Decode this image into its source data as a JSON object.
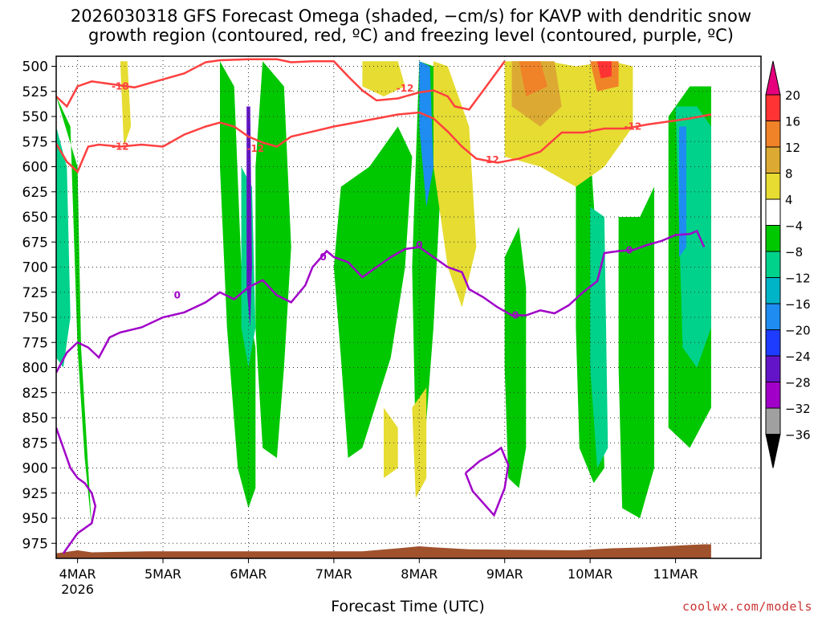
{
  "title_line1": "2026030318 GFS Forecast Omega (shaded, −cm/s) for KAVP with dendritic snow",
  "title_line2": "growth region (contoured, red, ºC) and freezing level (contoured, purple, ºC)",
  "credit": "coolwx.com/models",
  "chart_data": {
    "type": "heatmap",
    "title": "2026030318 GFS Forecast Omega (shaded, −cm/s) for KAVP with dendritic snow growth region (contoured, red, ºC) and freezing level (contoured, purple, ºC)",
    "xlabel": "Forecast Time (UTC)",
    "ylabel": "",
    "x_range_hours": [
      -6,
      192
    ],
    "y_range_hpa": [
      990,
      490
    ],
    "y_ticks": [
      "500",
      "525",
      "550",
      "575",
      "600",
      "625",
      "650",
      "675",
      "700",
      "725",
      "750",
      "775",
      "800",
      "825",
      "850",
      "875",
      "900",
      "925",
      "950",
      "975"
    ],
    "x_ticks": [
      {
        "label": "4MAR",
        "sub": "2026",
        "hour": 0
      },
      {
        "label": "5MAR",
        "sub": "",
        "hour": 24
      },
      {
        "label": "6MAR",
        "sub": "",
        "hour": 48
      },
      {
        "label": "7MAR",
        "sub": "",
        "hour": 72
      },
      {
        "label": "8MAR",
        "sub": "",
        "hour": 96
      },
      {
        "label": "9MAR",
        "sub": "",
        "hour": 120
      },
      {
        "label": "10MAR",
        "sub": "",
        "hour": 144
      },
      {
        "label": "11MAR",
        "sub": "",
        "hour": 168
      }
    ],
    "colorbar_labels": [
      "20",
      "16",
      "12",
      "8",
      "4",
      "−4",
      "−8",
      "−12",
      "−16",
      "−20",
      "−24",
      "−28",
      "−32",
      "−36"
    ],
    "colorbar_colors": [
      "#e6007e",
      "#ff3333",
      "#f08228",
      "#dcaa32",
      "#e6dc32",
      "#ffffff",
      "#00c800",
      "#00d28c",
      "#00b4c8",
      "#1e8cf0",
      "#1e3cff",
      "#6414c8",
      "#a000c8",
      "#a0a0a0",
      "#000000"
    ],
    "contour_labels": {
      "dgz": [
        "-18",
        "-12",
        "-12",
        "-12",
        "-12",
        "-12"
      ],
      "freezing": [
        "0",
        "0",
        "0",
        "0",
        "0"
      ]
    },
    "dgz_minus12_lower": [
      [
        -6,
        577
      ],
      [
        -3,
        595
      ],
      [
        0,
        605
      ],
      [
        3,
        580
      ],
      [
        6,
        578
      ],
      [
        12,
        580
      ],
      [
        18,
        578
      ],
      [
        24,
        580
      ],
      [
        30,
        568
      ],
      [
        36,
        560
      ],
      [
        40,
        556
      ],
      [
        44,
        560
      ],
      [
        48,
        570
      ],
      [
        52,
        576
      ],
      [
        56,
        580
      ],
      [
        60,
        570
      ],
      [
        66,
        565
      ],
      [
        72,
        560
      ],
      [
        78,
        556
      ],
      [
        84,
        552
      ],
      [
        90,
        548
      ],
      [
        96,
        546
      ],
      [
        100,
        552
      ],
      [
        104,
        565
      ],
      [
        108,
        580
      ],
      [
        112,
        592
      ],
      [
        118,
        596
      ],
      [
        124,
        592
      ],
      [
        130,
        585
      ],
      [
        136,
        566
      ],
      [
        142,
        566
      ],
      [
        148,
        562
      ],
      [
        154,
        562
      ],
      [
        160,
        558
      ],
      [
        166,
        555
      ],
      [
        172,
        552
      ],
      [
        178,
        548
      ]
    ],
    "dgz_minus12_upper": [
      [
        -6,
        530
      ],
      [
        -3,
        540
      ],
      [
        0,
        520
      ],
      [
        4,
        515
      ],
      [
        10,
        518
      ],
      [
        16,
        521
      ],
      [
        24,
        513
      ],
      [
        30,
        507
      ],
      [
        36,
        496
      ],
      [
        40,
        494
      ],
      [
        48,
        493
      ],
      [
        56,
        493
      ],
      [
        60,
        496
      ],
      [
        66,
        495
      ],
      [
        72,
        495
      ],
      [
        76,
        510
      ],
      [
        80,
        524
      ],
      [
        84,
        534
      ],
      [
        90,
        532
      ],
      [
        96,
        526
      ],
      [
        100,
        524
      ],
      [
        104,
        530
      ],
      [
        106,
        540
      ],
      [
        110,
        543
      ],
      [
        114,
        524
      ],
      [
        120,
        495
      ]
    ],
    "freezing_line": [
      [
        -6,
        805
      ],
      [
        -3,
        785
      ],
      [
        0,
        775
      ],
      [
        3,
        780
      ],
      [
        6,
        790
      ],
      [
        9,
        770
      ],
      [
        12,
        765
      ],
      [
        18,
        760
      ],
      [
        24,
        750
      ],
      [
        30,
        745
      ],
      [
        36,
        735
      ],
      [
        40,
        725
      ],
      [
        44,
        732
      ],
      [
        48,
        720
      ],
      [
        52,
        713
      ],
      [
        56,
        728
      ],
      [
        60,
        735
      ],
      [
        64,
        718
      ],
      [
        66,
        700
      ],
      [
        70,
        684
      ],
      [
        72,
        690
      ],
      [
        76,
        695
      ],
      [
        80,
        710
      ],
      [
        84,
        700
      ],
      [
        88,
        690
      ],
      [
        92,
        682
      ],
      [
        96,
        680
      ],
      [
        100,
        690
      ],
      [
        104,
        700
      ],
      [
        108,
        705
      ],
      [
        110,
        722
      ],
      [
        114,
        730
      ],
      [
        118,
        740
      ],
      [
        122,
        748
      ],
      [
        126,
        748
      ],
      [
        130,
        743
      ],
      [
        134,
        746
      ],
      [
        138,
        738
      ],
      [
        142,
        725
      ],
      [
        146,
        714
      ],
      [
        148,
        686
      ],
      [
        152,
        684
      ],
      [
        156,
        683
      ],
      [
        160,
        678
      ],
      [
        164,
        674
      ],
      [
        168,
        668
      ],
      [
        172,
        667
      ],
      [
        174,
        664
      ],
      [
        176,
        680
      ]
    ],
    "freezing_closed_region": [
      [
        109,
        905
      ],
      [
        113,
        893
      ],
      [
        117,
        885
      ],
      [
        119,
        880
      ],
      [
        121,
        897
      ],
      [
        120,
        920
      ],
      [
        117,
        947
      ],
      [
        114,
        935
      ],
      [
        111,
        923
      ],
      [
        109,
        905
      ]
    ],
    "freezing_lower_left": [
      [
        -6,
        860
      ],
      [
        -4,
        880
      ],
      [
        -2,
        900
      ],
      [
        0,
        910
      ],
      [
        2,
        915
      ],
      [
        4,
        925
      ],
      [
        5,
        938
      ],
      [
        4,
        955
      ],
      [
        0,
        965
      ],
      [
        -4,
        985
      ]
    ],
    "omega_areas": [
      {
        "value": -8,
        "points": [
          [
            -6,
            530
          ],
          [
            -2,
            560
          ],
          [
            0,
            780
          ],
          [
            2,
            890
          ],
          [
            4,
            960
          ],
          [
            3,
            900
          ],
          [
            1,
            780
          ],
          [
            0,
            600
          ]
        ]
      },
      {
        "value": -8,
        "points": [
          [
            40,
            495
          ],
          [
            44,
            520
          ],
          [
            46,
            700
          ],
          [
            50,
            780
          ],
          [
            50,
            920
          ],
          [
            48,
            940
          ],
          [
            45,
            900
          ],
          [
            42,
            760
          ],
          [
            40,
            600
          ]
        ]
      },
      {
        "value": -8,
        "points": [
          [
            52,
            495
          ],
          [
            58,
            520
          ],
          [
            60,
            680
          ],
          [
            58,
            800
          ],
          [
            56,
            890
          ],
          [
            52,
            880
          ],
          [
            50,
            760
          ],
          [
            50,
            600
          ]
        ]
      },
      {
        "value": -8,
        "points": [
          [
            74,
            620
          ],
          [
            82,
            600
          ],
          [
            90,
            560
          ],
          [
            94,
            590
          ],
          [
            92,
            700
          ],
          [
            88,
            790
          ],
          [
            80,
            880
          ],
          [
            76,
            890
          ],
          [
            74,
            790
          ],
          [
            72,
            700
          ]
        ]
      },
      {
        "value": -8,
        "points": [
          [
            96,
            495
          ],
          [
            100,
            500
          ],
          [
            102,
            620
          ],
          [
            100,
            760
          ],
          [
            97,
            900
          ],
          [
            95,
            880
          ],
          [
            94,
            700
          ]
        ]
      },
      {
        "value": -8,
        "points": [
          [
            120,
            690
          ],
          [
            124,
            660
          ],
          [
            126,
            720
          ],
          [
            126,
            880
          ],
          [
            124,
            920
          ],
          [
            121,
            910
          ],
          [
            120,
            800
          ]
        ]
      },
      {
        "value": -8,
        "points": [
          [
            140,
            600
          ],
          [
            144,
            580
          ],
          [
            146,
            690
          ],
          [
            148,
            900
          ],
          [
            145,
            915
          ],
          [
            141,
            880
          ],
          [
            140,
            760
          ]
        ]
      },
      {
        "value": -8,
        "points": [
          [
            152,
            650
          ],
          [
            158,
            650
          ],
          [
            162,
            620
          ],
          [
            162,
            900
          ],
          [
            158,
            950
          ],
          [
            153,
            940
          ],
          [
            152,
            800
          ]
        ]
      },
      {
        "value": -8,
        "points": [
          [
            166,
            550
          ],
          [
            172,
            520
          ],
          [
            178,
            520
          ],
          [
            178,
            840
          ],
          [
            172,
            880
          ],
          [
            166,
            860
          ]
        ]
      },
      {
        "value": -12,
        "points": [
          [
            -6,
            560
          ],
          [
            -3,
            600
          ],
          [
            -2,
            750
          ],
          [
            -4,
            800
          ],
          [
            -6,
            790
          ]
        ]
      },
      {
        "value": -12,
        "points": [
          [
            46,
            600
          ],
          [
            49,
            620
          ],
          [
            50,
            760
          ],
          [
            48,
            800
          ],
          [
            46,
            760
          ]
        ]
      },
      {
        "value": -12,
        "points": [
          [
            144,
            640
          ],
          [
            148,
            650
          ],
          [
            149,
            880
          ],
          [
            146,
            900
          ],
          [
            144,
            800
          ]
        ]
      },
      {
        "value": -12,
        "points": [
          [
            168,
            540
          ],
          [
            174,
            540
          ],
          [
            178,
            560
          ],
          [
            178,
            760
          ],
          [
            174,
            800
          ],
          [
            170,
            780
          ]
        ]
      },
      {
        "value": -16,
        "points": [
          [
            96,
            495
          ],
          [
            99,
            500
          ],
          [
            100,
            600
          ],
          [
            98,
            640
          ],
          [
            96,
            560
          ]
        ]
      },
      {
        "value": -16,
        "points": [
          [
            169,
            560
          ],
          [
            171,
            560
          ],
          [
            171,
            680
          ],
          [
            169,
            690
          ]
        ]
      },
      {
        "value": -24,
        "points": [
          [
            47.5,
            540
          ],
          [
            48.5,
            540
          ],
          [
            49,
            700
          ],
          [
            48.5,
            760
          ],
          [
            47.5,
            720
          ]
        ]
      },
      {
        "value": 4,
        "points": [
          [
            80,
            495
          ],
          [
            90,
            495
          ],
          [
            92,
            520
          ],
          [
            86,
            530
          ],
          [
            80,
            520
          ]
        ]
      },
      {
        "value": 4,
        "points": [
          [
            100,
            495
          ],
          [
            104,
            500
          ],
          [
            110,
            560
          ],
          [
            112,
            680
          ],
          [
            108,
            740
          ],
          [
            104,
            700
          ],
          [
            100,
            600
          ]
        ]
      },
      {
        "value": 4,
        "points": [
          [
            120,
            495
          ],
          [
            132,
            495
          ],
          [
            140,
            500
          ],
          [
            150,
            495
          ],
          [
            156,
            500
          ],
          [
            156,
            560
          ],
          [
            148,
            600
          ],
          [
            140,
            620
          ],
          [
            130,
            600
          ],
          [
            120,
            590
          ]
        ]
      },
      {
        "value": 8,
        "points": [
          [
            122,
            495
          ],
          [
            134,
            495
          ],
          [
            136,
            540
          ],
          [
            130,
            560
          ],
          [
            122,
            540
          ]
        ]
      },
      {
        "value": 12,
        "points": [
          [
            124,
            495
          ],
          [
            130,
            495
          ],
          [
            132,
            520
          ],
          [
            126,
            530
          ]
        ]
      },
      {
        "value": 12,
        "points": [
          [
            144,
            495
          ],
          [
            152,
            495
          ],
          [
            152,
            520
          ],
          [
            146,
            525
          ]
        ]
      },
      {
        "value": 16,
        "points": [
          [
            146,
            495
          ],
          [
            150,
            495
          ],
          [
            150,
            510
          ],
          [
            147,
            512
          ]
        ]
      },
      {
        "value": 4,
        "points": [
          [
            12,
            495
          ],
          [
            14,
            495
          ],
          [
            15,
            560
          ],
          [
            13,
            580
          ]
        ]
      },
      {
        "value": 4,
        "points": [
          [
            86,
            840
          ],
          [
            90,
            860
          ],
          [
            90,
            900
          ],
          [
            86,
            910
          ]
        ]
      },
      {
        "value": 4,
        "points": [
          [
            94,
            840
          ],
          [
            98,
            820
          ],
          [
            98,
            910
          ],
          [
            95,
            930
          ]
        ]
      }
    ],
    "terrain_color": "#a0522d"
  }
}
